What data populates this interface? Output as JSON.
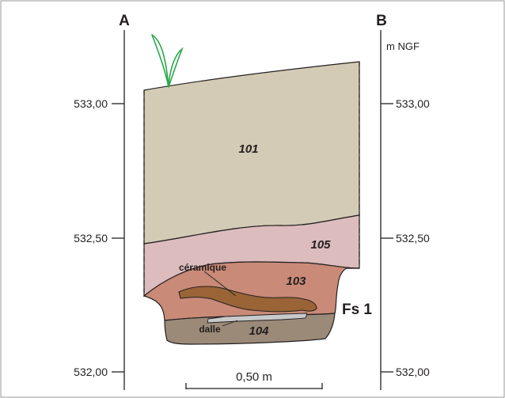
{
  "axes": {
    "left_label": "A",
    "right_label": "B",
    "unit": "m NGF",
    "ticks": [
      "533,00",
      "532,50",
      "532,00"
    ]
  },
  "layers": [
    {
      "id": "101",
      "color": "#d3cbb6"
    },
    {
      "id": "105",
      "color": "#dcbcbc"
    },
    {
      "id": "103",
      "color": "#c98a78"
    },
    {
      "id": "104",
      "color": "#9b8a78"
    }
  ],
  "annotations": {
    "ceramic": "céramique",
    "slab": "dalle",
    "feature": "Fs 1"
  },
  "scale_bar": "0,50 m",
  "colors": {
    "ceramic_fill": "#9a6436",
    "slab_fill": "#c8c9cb",
    "plant_stroke": "#2aa84a",
    "line": "#231f20"
  }
}
